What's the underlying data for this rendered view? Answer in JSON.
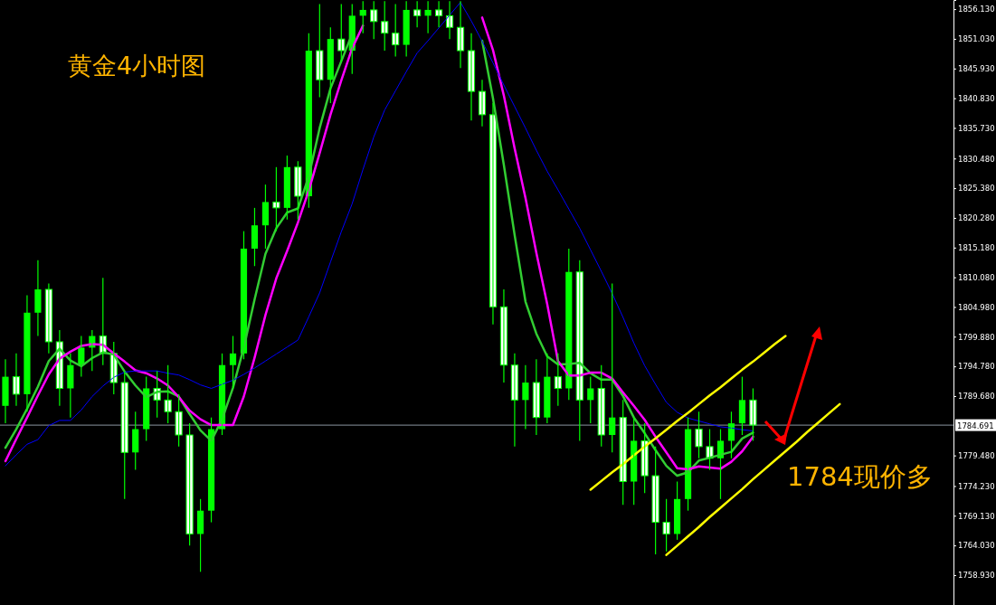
{
  "chart_data": {
    "type": "candlestick",
    "title": "黄金4小时图",
    "color": "#00ff00",
    "categories": [
      null,
      null,
      null,
      null,
      null,
      null,
      null,
      null,
      null,
      null,
      null,
      null,
      null,
      null,
      null,
      null,
      null,
      null,
      null,
      null,
      null,
      null,
      null,
      null,
      null,
      null,
      null,
      null,
      null,
      null,
      null,
      null,
      null,
      null,
      null,
      null,
      null,
      null,
      null,
      null,
      null,
      null,
      null,
      null,
      null,
      null,
      null,
      null,
      null,
      null,
      null,
      null,
      null,
      null,
      null,
      null,
      null,
      null,
      null,
      null,
      null,
      null,
      null,
      null,
      null,
      null,
      null,
      null,
      null,
      null,
      null,
      null,
      null,
      null,
      null,
      null,
      null,
      null,
      null,
      null,
      null,
      null,
      null,
      null,
      null,
      null,
      null,
      null
    ],
    "ohlc": [
      [
        1788,
        1796,
        1785,
        1793
      ],
      [
        1793,
        1797,
        1788,
        1790
      ],
      [
        1790,
        1807,
        1787,
        1804
      ],
      [
        1804,
        1813,
        1800,
        1808
      ],
      [
        1808,
        1809,
        1797,
        1799
      ],
      [
        1799,
        1801,
        1788,
        1791
      ],
      [
        1791,
        1797,
        1786,
        1795
      ],
      [
        1795,
        1800,
        1793,
        1798
      ],
      [
        1798,
        1801,
        1794,
        1800
      ],
      [
        1800,
        1810,
        1795,
        1797
      ],
      [
        1797,
        1799,
        1790,
        1792
      ],
      [
        1792,
        1794,
        1772,
        1780
      ],
      [
        1780,
        1787,
        1777,
        1784
      ],
      [
        1784,
        1793,
        1782,
        1791
      ],
      [
        1791,
        1794,
        1786,
        1789
      ],
      [
        1789,
        1795,
        1785,
        1787
      ],
      [
        1787,
        1790,
        1781,
        1783
      ],
      [
        1783,
        1785,
        1764,
        1766
      ],
      [
        1766,
        1772,
        1759.5,
        1770
      ],
      [
        1770,
        1786,
        1768,
        1784
      ],
      [
        1784,
        1797,
        1783,
        1795
      ],
      [
        1795,
        1800,
        1791,
        1797
      ],
      [
        1797,
        1818,
        1796,
        1815
      ],
      [
        1815,
        1822,
        1812,
        1819
      ],
      [
        1819,
        1826,
        1815,
        1823
      ],
      [
        1823,
        1829,
        1818,
        1822
      ],
      [
        1822,
        1831,
        1820,
        1829
      ],
      [
        1829,
        1830,
        1820,
        1824
      ],
      [
        1824,
        1852,
        1822,
        1849
      ],
      [
        1849,
        1857,
        1841,
        1844
      ],
      [
        1844,
        1853,
        1840,
        1851
      ],
      [
        1851,
        1857,
        1847,
        1849
      ],
      [
        1849,
        1857,
        1845,
        1855
      ],
      [
        1855,
        1857.5,
        1852,
        1856
      ],
      [
        1856,
        1857.5,
        1851,
        1854
      ],
      [
        1854,
        1857.5,
        1849,
        1852
      ],
      [
        1852,
        1857,
        1848,
        1850
      ],
      [
        1850,
        1857.5,
        1848,
        1856
      ],
      [
        1856,
        1857.5,
        1853,
        1855
      ],
      [
        1855,
        1857.5,
        1852,
        1856
      ],
      [
        1856,
        1857.5,
        1853,
        1855
      ],
      [
        1855,
        1857.5,
        1851,
        1853
      ],
      [
        1853,
        1857.5,
        1846,
        1849
      ],
      [
        1849,
        1852,
        1837,
        1842
      ],
      [
        1842,
        1844,
        1836,
        1838
      ],
      [
        1838,
        1840,
        1802,
        1805
      ],
      [
        1805,
        1808,
        1792,
        1795
      ],
      [
        1795,
        1797,
        1781,
        1789
      ],
      [
        1789,
        1795,
        1784,
        1792
      ],
      [
        1792,
        1796,
        1783,
        1786
      ],
      [
        1786,
        1797,
        1785,
        1793
      ],
      [
        1793,
        1797,
        1788,
        1791
      ],
      [
        1791,
        1815,
        1789,
        1811
      ],
      [
        1811,
        1813,
        1782,
        1789
      ],
      [
        1789,
        1793,
        1785,
        1791
      ],
      [
        1791,
        1795,
        1781,
        1783
      ],
      [
        1783,
        1809,
        1780,
        1786
      ],
      [
        1786,
        1789,
        1771,
        1775
      ],
      [
        1775,
        1786,
        1771,
        1782
      ],
      [
        1782,
        1785,
        1773,
        1776
      ],
      [
        1776,
        1781,
        1762.5,
        1768
      ],
      [
        1768,
        1772,
        1763,
        1766
      ],
      [
        1766,
        1775,
        1765,
        1772
      ],
      [
        1772,
        1786,
        1770,
        1784
      ],
      [
        1784,
        1787,
        1779,
        1781
      ],
      [
        1781,
        1784,
        1777,
        1779
      ],
      [
        1779,
        1784,
        1772,
        1782
      ],
      [
        1782,
        1787,
        1779,
        1785
      ],
      [
        1785,
        1793,
        1783,
        1789
      ],
      [
        1789,
        1791,
        1782,
        1784.7
      ],
      null,
      null,
      null,
      null,
      null,
      null,
      null,
      null,
      null,
      null,
      null,
      null,
      null,
      null,
      null,
      null,
      null,
      null
    ],
    "series": [
      {
        "type": "line",
        "color": "#32cd32",
        "values": [
          1780.8,
          1784.0,
          1787.5,
          1791.3,
          1795.7,
          1797.8,
          1795.8,
          1794.8,
          1796.2,
          1797.2,
          1796.8,
          1793.9,
          1791.5,
          1789.5,
          1790.4,
          1790.5,
          1789.6,
          1786.6,
          1783.8,
          1782.0,
          1785.7,
          1791.1,
          1798.0,
          1806.3,
          1814.1,
          1818.5,
          1821.2,
          1821.9,
          1827.4,
          1835.7,
          1842.5,
          1847.2,
          1851.9,
          null,
          null,
          null,
          null,
          null,
          null,
          null,
          null,
          null,
          null,
          null,
          1850.7,
          1840.8,
          1829.4,
          1817.3,
          1805.9,
          1800.4,
          1796.5,
          1795.1,
          1795.2,
          1795.4,
          1793.6,
          1792.5,
          1792.5,
          1789.7,
          1786.0,
          1783.3,
          1780.4,
          1777.7,
          1776.0,
          1776.6,
          1778.6,
          1779.1,
          1779.6,
          1780.1,
          1782.4,
          1783.4,
          null,
          null,
          null,
          null,
          null,
          null,
          null,
          null,
          null,
          null,
          null,
          null,
          null,
          null,
          null,
          null,
          null,
          null
        ]
      },
      {
        "type": "line",
        "color": "#ff00ff",
        "values": [
          1778.5,
          1782.3,
          1786.0,
          1789.8,
          1793.4,
          1796.1,
          1797.3,
          1798.3,
          1798.6,
          1798.5,
          1797.0,
          1795.6,
          1794.1,
          1793.6,
          1792.7,
          1791.5,
          1789.5,
          1787.2,
          1785.7,
          1784.7,
          1784.7,
          1784.7,
          1789.6,
          1796.3,
          1803.6,
          1809.9,
          1814.6,
          1819.5,
          1825.0,
          1831.4,
          1838.0,
          1843.9,
          1849.4,
          1853.3,
          null,
          null,
          null,
          null,
          null,
          null,
          null,
          null,
          null,
          null,
          1854.7,
          1849.1,
          1841.3,
          1832.2,
          1823.7,
          1814.3,
          1805.5,
          1795.7,
          1793.2,
          1793.2,
          1793.7,
          1793.7,
          1792.7,
          1790.3,
          1788.0,
          1785.6,
          1782.7,
          1780.0,
          1777.3,
          1777.1,
          1777.6,
          1777.4,
          1777.2,
          1778.4,
          1780.2,
          1782.7,
          null,
          null,
          null,
          null,
          null,
          null,
          null,
          null,
          null,
          null,
          null,
          null,
          null,
          null,
          null,
          null,
          null,
          null
        ]
      },
      {
        "type": "line",
        "color": "#0000ff",
        "values": [
          1777.7,
          1779.6,
          1781.4,
          1782.2,
          1784.6,
          1785.5,
          1785.5,
          1787.3,
          1789.6,
          1791.4,
          1792.9,
          1793.8,
          1794.0,
          1794.0,
          1794.0,
          1793.6,
          1793.3,
          1792.5,
          1791.6,
          1791.0,
          1791.7,
          1792.4,
          1793.4,
          1794.5,
          1795.7,
          1796.9,
          1798.1,
          1799.3,
          1803.3,
          1807.4,
          1812.7,
          1817.9,
          1822.7,
          1828.6,
          1834.2,
          1838.8,
          1842.1,
          1845.4,
          1848.6,
          1850.7,
          1852.9,
          1855.1,
          1857.3,
          1854.1,
          1850.6,
          1846.9,
          1843.1,
          1839.4,
          1835.7,
          1831.9,
          1828.3,
          1825.1,
          1821.8,
          1818.5,
          1814.8,
          1811.1,
          1807.3,
          1803.2,
          1798.8,
          1794.9,
          1791.7,
          1788.6,
          1786.9,
          1785.9,
          1785.4,
          1784.9,
          1784.4,
          1784.2,
          1783.9,
          1783.7,
          null,
          null,
          null,
          null,
          null,
          null,
          null,
          null,
          null,
          null,
          null,
          null,
          null,
          null,
          null,
          null,
          null,
          null
        ]
      },
      {
        "type": "line",
        "color": "#ffff00",
        "values": [
          null,
          null,
          null,
          null,
          null,
          null,
          null,
          null,
          null,
          null,
          null,
          null,
          null,
          null,
          null,
          null,
          null,
          null,
          null,
          null,
          null,
          null,
          null,
          null,
          null,
          null,
          null,
          null,
          null,
          null,
          null,
          null,
          null,
          null,
          null,
          null,
          null,
          null,
          null,
          null,
          null,
          null,
          null,
          null,
          null,
          null,
          null,
          null,
          null,
          null,
          null,
          null,
          null,
          null,
          1773.6,
          1775.1,
          1776.6,
          1778.0,
          1779.5,
          1781.0,
          1782.4,
          1783.9,
          1785.4,
          1786.8,
          1788.3,
          1789.8,
          1791.2,
          1792.7,
          1794.2,
          1795.6,
          1797.1,
          1798.6,
          1800.0,
          null,
          null,
          null,
          null,
          null,
          null,
          null,
          null,
          null,
          null,
          null,
          null,
          null,
          null,
          null
        ]
      },
      {
        "type": "line",
        "color": "#ffff00",
        "values": [
          null,
          null,
          null,
          null,
          null,
          null,
          null,
          null,
          null,
          null,
          null,
          null,
          null,
          null,
          null,
          null,
          null,
          null,
          null,
          null,
          null,
          null,
          null,
          null,
          null,
          null,
          null,
          null,
          null,
          null,
          null,
          null,
          null,
          null,
          null,
          null,
          null,
          null,
          null,
          null,
          null,
          null,
          null,
          null,
          null,
          null,
          null,
          null,
          null,
          null,
          null,
          null,
          null,
          null,
          null,
          null,
          null,
          null,
          null,
          null,
          null,
          1762.4,
          1764.0,
          1765.6,
          1767.2,
          1768.9,
          1770.5,
          1772.1,
          1773.7,
          1775.4,
          1777.0,
          1778.6,
          1780.2,
          1781.8,
          1783.5,
          1785.1,
          1786.7,
          1788.3,
          null,
          null,
          null,
          null,
          null,
          null,
          null,
          null,
          null,
          null
        ]
      }
    ],
    "ylim": [
      1753.8,
      1857.7
    ],
    "yticks": [
      {
        "value": 1856.13,
        "label": "1856.130"
      },
      {
        "value": 1851.03,
        "label": "1851.030"
      },
      {
        "value": 1845.93,
        "label": "1845.930"
      },
      {
        "value": 1840.83,
        "label": "1840.830"
      },
      {
        "value": 1835.73,
        "label": "1835.730"
      },
      {
        "value": 1830.48,
        "label": "1830.480"
      },
      {
        "value": 1825.38,
        "label": "1825.380"
      },
      {
        "value": 1820.28,
        "label": "1820.280"
      },
      {
        "value": 1815.18,
        "label": "1815.180"
      },
      {
        "value": 1810.08,
        "label": "1810.080"
      },
      {
        "value": 1804.98,
        "label": "1804.980"
      },
      {
        "value": 1799.88,
        "label": "1799.880"
      },
      {
        "value": 1794.78,
        "label": "1794.780"
      },
      {
        "value": 1789.68,
        "label": "1789.680"
      },
      {
        "value": 1779.48,
        "label": "1779.480"
      },
      {
        "value": 1774.23,
        "label": "1774.230"
      },
      {
        "value": 1769.13,
        "label": "1769.130"
      },
      {
        "value": 1764.03,
        "label": "1764.030"
      },
      {
        "value": 1758.93,
        "label": "1758.930"
      }
    ],
    "ref_lines": [
      {
        "axis": "y",
        "value": 1784.691,
        "label": "1784.691",
        "color": "#8c96a0"
      }
    ],
    "annotations": [
      "1784现价多"
    ],
    "tick_labels": "y"
  }
}
